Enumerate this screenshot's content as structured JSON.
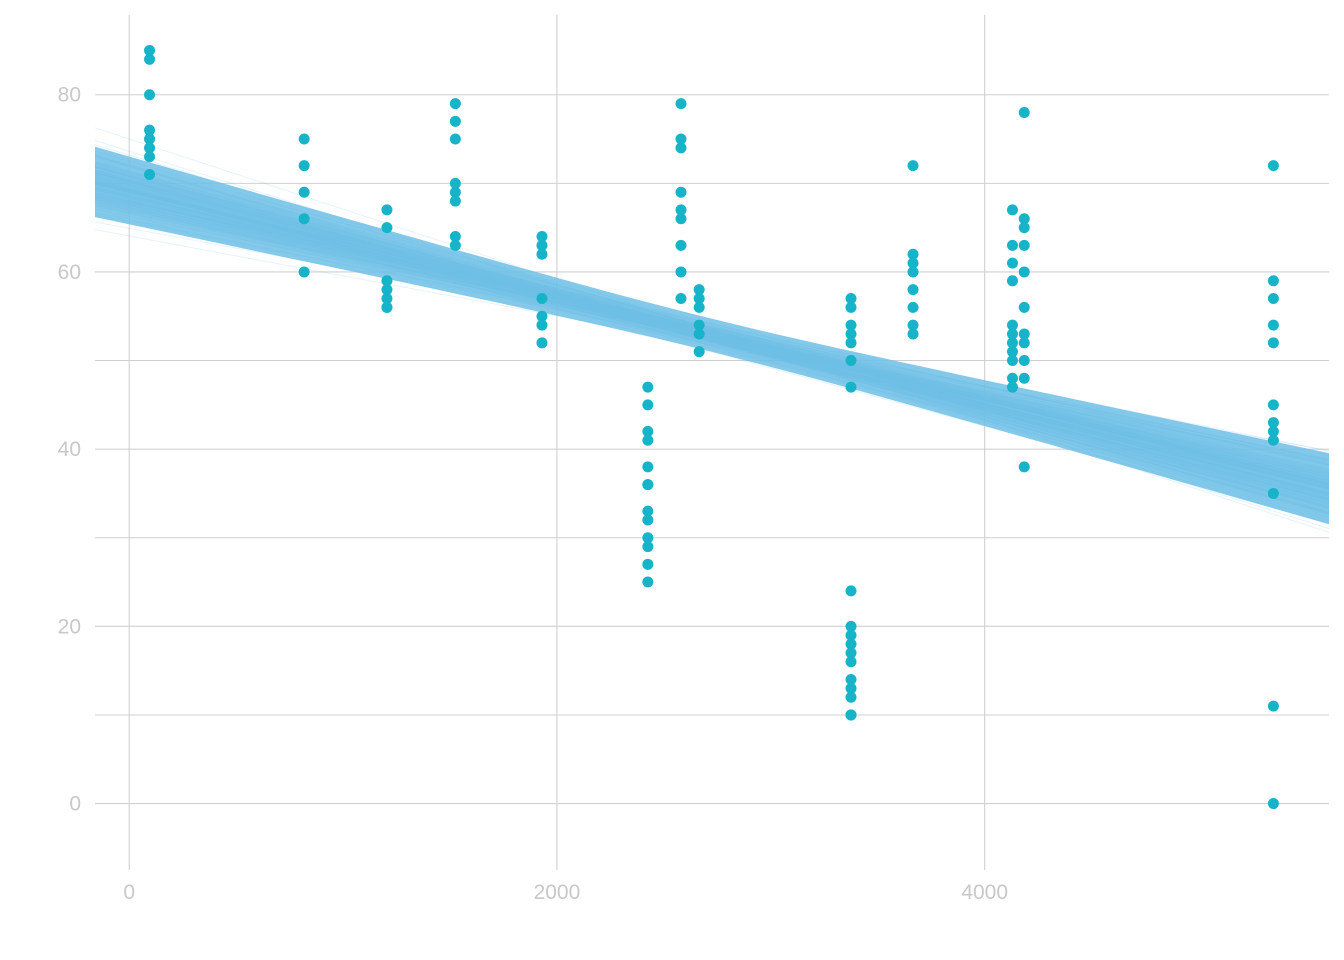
{
  "chart_data": {
    "type": "scatter",
    "title": "",
    "xlabel": "",
    "ylabel": "",
    "xlim": [
      -160,
      5610
    ],
    "ylim": [
      -7.5,
      89
    ],
    "x_ticks": [
      {
        "value": 0,
        "label": "0"
      },
      {
        "value": 2000,
        "label": "2000"
      },
      {
        "value": 4000,
        "label": "4000"
      }
    ],
    "x_minor_gridlines": [],
    "y_ticks": [
      {
        "value": 0,
        "label": "0"
      },
      {
        "value": 20,
        "label": "20"
      },
      {
        "value": 40,
        "label": "40"
      },
      {
        "value": 60,
        "label": "60"
      },
      {
        "value": 80,
        "label": "80"
      }
    ],
    "y_minor_gridlines": [
      10,
      30,
      50,
      70
    ],
    "grid": true,
    "legend": "none",
    "colors": {
      "points": "#17b3c8",
      "regression_lines": "#6fbfe6",
      "grid": "#d0d0d0",
      "tick_text": "#c8c8c8"
    },
    "regression_band": {
      "description_x_range": [
        -160,
        5610
      ],
      "mean_line": {
        "intercept": 69.2,
        "slope": -0.006
      },
      "draws": 300,
      "intercept_sd": 1.9,
      "slope_sd": 0.00055
    },
    "points": [
      {
        "x": 95,
        "y": [
          85,
          84,
          80,
          76,
          75,
          74,
          73,
          71
        ]
      },
      {
        "x": 818,
        "y": [
          75,
          72,
          69,
          66,
          60
        ]
      },
      {
        "x": 1205,
        "y": [
          67,
          65,
          59,
          58,
          57,
          56,
          56
        ]
      },
      {
        "x": 1525,
        "y": [
          79,
          77,
          75,
          70,
          69,
          68,
          64,
          63
        ]
      },
      {
        "x": 1930,
        "y": [
          64,
          63,
          62,
          57,
          55,
          54,
          52
        ]
      },
      {
        "x": 2425,
        "y": [
          47,
          45,
          42,
          41,
          38,
          36,
          36,
          33,
          32,
          30,
          29,
          27,
          25
        ]
      },
      {
        "x": 2580,
        "y": [
          79,
          75,
          74,
          69,
          67,
          66,
          63,
          60,
          57
        ]
      },
      {
        "x": 2665,
        "y": [
          58,
          57,
          56,
          54,
          53,
          51
        ]
      },
      {
        "x": 3375,
        "y": [
          57,
          56,
          54,
          53,
          52,
          50,
          47,
          24,
          20,
          19,
          18,
          17,
          16,
          14,
          13,
          12,
          10,
          10
        ]
      },
      {
        "x": 3665,
        "y": [
          72,
          62,
          61,
          60,
          58,
          56,
          54,
          53
        ]
      },
      {
        "x": 4130,
        "y": [
          67,
          63,
          61,
          59,
          54,
          53,
          52,
          51,
          50,
          48,
          47
        ]
      },
      {
        "x": 4185,
        "y": [
          78,
          66,
          65,
          63,
          60,
          56,
          53,
          52,
          50,
          48,
          38
        ]
      },
      {
        "x": 5350,
        "y": [
          72,
          59,
          57,
          54,
          52,
          45,
          43,
          42,
          41,
          35,
          11,
          0
        ]
      }
    ]
  }
}
